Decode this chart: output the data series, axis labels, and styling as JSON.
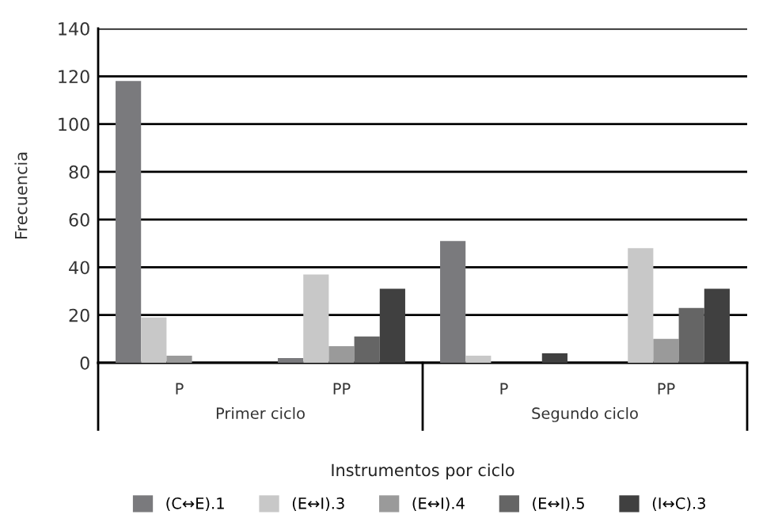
{
  "chart_data": {
    "type": "bar",
    "xlabel": "Instrumentos por ciclo",
    "ylabel": "Frecuencia",
    "categories": [
      "P",
      "PP",
      "P",
      "PP"
    ],
    "annotations": [
      "Primer ciclo",
      "Segundo ciclo"
    ],
    "series": [
      {
        "name": "(C↔E).1",
        "color": "#7a7a7d",
        "values": [
          118,
          2,
          51,
          0
        ]
      },
      {
        "name": "(E↔I).3",
        "color": "#c8c8c8",
        "values": [
          19,
          37,
          3,
          48
        ]
      },
      {
        "name": "(E↔I).4",
        "color": "#9a9a9a",
        "values": [
          3,
          7,
          0,
          10
        ]
      },
      {
        "name": "(E↔I).5",
        "color": "#656565",
        "values": [
          0,
          11,
          0,
          23
        ]
      },
      {
        "name": "(I↔C).3",
        "color": "#404040",
        "values": [
          0,
          31,
          4,
          31
        ]
      }
    ],
    "ylim": [
      0,
      140
    ],
    "yticks": [
      0,
      20,
      40,
      60,
      80,
      100,
      120,
      140
    ],
    "grid": "y",
    "legend": "bottom"
  }
}
